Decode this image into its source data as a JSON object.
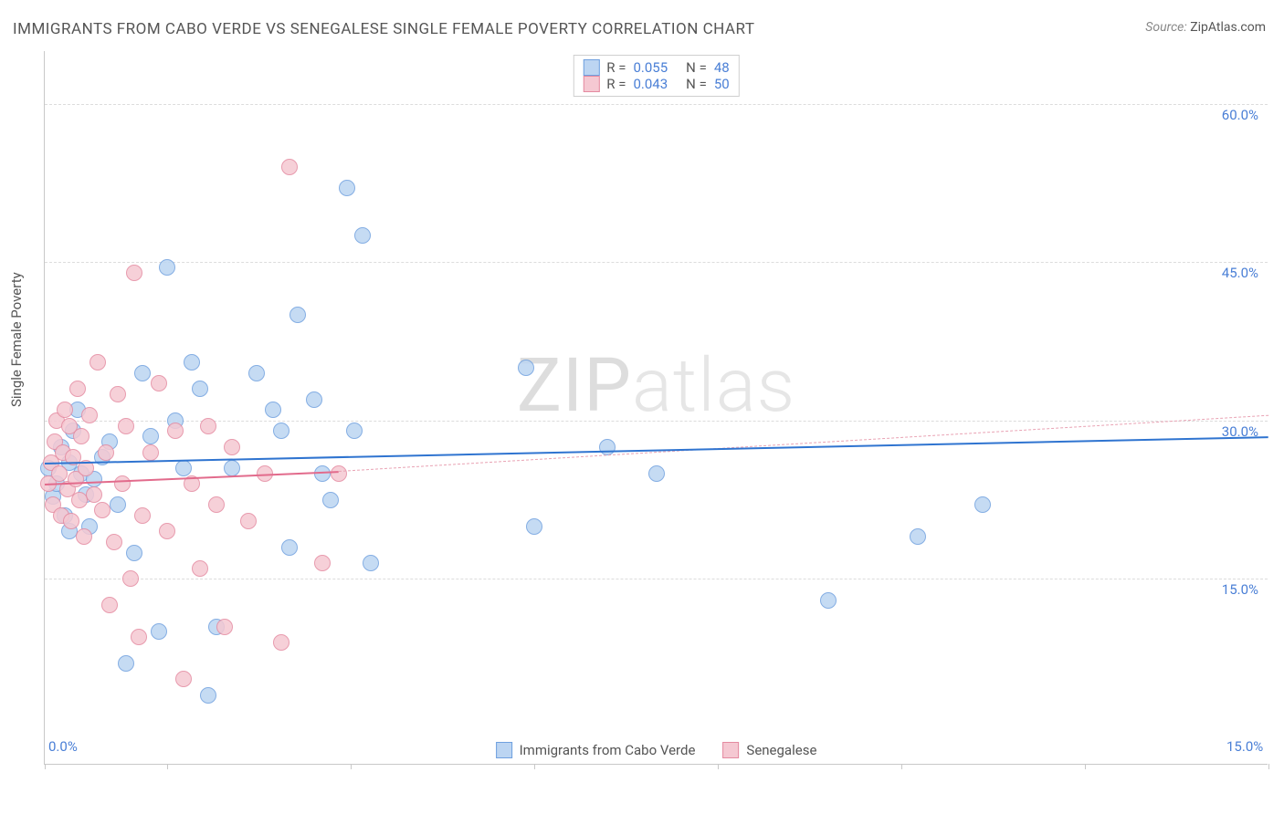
{
  "title": "IMMIGRANTS FROM CABO VERDE VS SENEGALESE SINGLE FEMALE POVERTY CORRELATION CHART",
  "source_label": "Source:",
  "source_value": "ZipAtlas.com",
  "y_axis_label": "Single Female Poverty",
  "watermark": "ZIPatlas",
  "chart": {
    "type": "scatter",
    "background_color": "#ffffff",
    "grid_color": "#dcdcdc",
    "axis_color": "#c8c8c8",
    "tick_label_color": "#4a7fd6",
    "label_fontsize": 15,
    "xlim": [
      0,
      15
    ],
    "ylim": [
      0,
      65
    ],
    "x_ticks": [
      0,
      1.5,
      3.75,
      6.0,
      8.25,
      10.5,
      12.75,
      15
    ],
    "x_tick_labels": {
      "0": "0.0%",
      "15": "15.0%"
    },
    "y_gridlines": [
      15,
      30,
      45,
      60
    ],
    "y_tick_labels": {
      "15": "15.0%",
      "30": "30.0%",
      "45": "45.0%",
      "60": "60.0%"
    },
    "marker_radius": 9,
    "marker_stroke_width": 1.5,
    "series": [
      {
        "name": "Immigrants from Cabo Verde",
        "fill": "#bcd5f2",
        "stroke": "#6fa0df",
        "r_value": "0.055",
        "n_value": "48",
        "trend": {
          "x1": 0,
          "y1": 26.0,
          "x2": 15,
          "y2": 28.5,
          "color": "#2f74d0",
          "width": 2.5,
          "dash": false
        },
        "points": [
          [
            0.05,
            25.5
          ],
          [
            0.1,
            22.8
          ],
          [
            0.15,
            24.0
          ],
          [
            0.2,
            27.5
          ],
          [
            0.25,
            21.0
          ],
          [
            0.3,
            26.0
          ],
          [
            0.3,
            19.5
          ],
          [
            0.35,
            29.0
          ],
          [
            0.4,
            31.0
          ],
          [
            0.45,
            25.0
          ],
          [
            0.5,
            23.0
          ],
          [
            0.55,
            20.0
          ],
          [
            0.6,
            24.5
          ],
          [
            0.7,
            26.5
          ],
          [
            0.8,
            28.0
          ],
          [
            0.9,
            22.0
          ],
          [
            1.0,
            7.0
          ],
          [
            1.1,
            17.5
          ],
          [
            1.2,
            34.5
          ],
          [
            1.3,
            28.5
          ],
          [
            1.4,
            10.0
          ],
          [
            1.5,
            44.5
          ],
          [
            1.6,
            30.0
          ],
          [
            1.7,
            25.5
          ],
          [
            1.8,
            35.5
          ],
          [
            1.9,
            33.0
          ],
          [
            2.0,
            4.0
          ],
          [
            2.1,
            10.5
          ],
          [
            2.3,
            25.5
          ],
          [
            2.6,
            34.5
          ],
          [
            2.8,
            31.0
          ],
          [
            2.9,
            29.0
          ],
          [
            3.0,
            18.0
          ],
          [
            3.1,
            40.0
          ],
          [
            3.3,
            32.0
          ],
          [
            3.4,
            25.0
          ],
          [
            3.5,
            22.5
          ],
          [
            3.7,
            52.0
          ],
          [
            3.8,
            29.0
          ],
          [
            3.9,
            47.5
          ],
          [
            4.0,
            16.5
          ],
          [
            5.9,
            35.0
          ],
          [
            6.0,
            20.0
          ],
          [
            6.9,
            27.5
          ],
          [
            7.5,
            25.0
          ],
          [
            9.6,
            13.0
          ],
          [
            10.7,
            19.0
          ],
          [
            11.5,
            22.0
          ]
        ]
      },
      {
        "name": "Senegalese",
        "fill": "#f5c8d2",
        "stroke": "#e48aa0",
        "r_value": "0.043",
        "n_value": "50",
        "trend_solid": {
          "x1": 0,
          "y1": 24.0,
          "x2": 3.6,
          "y2": 25.2,
          "color": "#e26b8c",
          "width": 2.5
        },
        "trend_dash": {
          "x1": 3.6,
          "y1": 25.2,
          "x2": 15,
          "y2": 30.5,
          "color": "#e9a3b4",
          "width": 1.2
        },
        "points": [
          [
            0.05,
            24.0
          ],
          [
            0.08,
            26.0
          ],
          [
            0.1,
            22.0
          ],
          [
            0.12,
            28.0
          ],
          [
            0.15,
            30.0
          ],
          [
            0.18,
            25.0
          ],
          [
            0.2,
            21.0
          ],
          [
            0.22,
            27.0
          ],
          [
            0.25,
            31.0
          ],
          [
            0.28,
            23.5
          ],
          [
            0.3,
            29.5
          ],
          [
            0.32,
            20.5
          ],
          [
            0.35,
            26.5
          ],
          [
            0.38,
            24.5
          ],
          [
            0.4,
            33.0
          ],
          [
            0.42,
            22.5
          ],
          [
            0.45,
            28.5
          ],
          [
            0.48,
            19.0
          ],
          [
            0.5,
            25.5
          ],
          [
            0.55,
            30.5
          ],
          [
            0.6,
            23.0
          ],
          [
            0.65,
            35.5
          ],
          [
            0.7,
            21.5
          ],
          [
            0.75,
            27.0
          ],
          [
            0.8,
            12.5
          ],
          [
            0.85,
            18.5
          ],
          [
            0.9,
            32.5
          ],
          [
            0.95,
            24.0
          ],
          [
            1.0,
            29.5
          ],
          [
            1.05,
            15.0
          ],
          [
            1.1,
            44.0
          ],
          [
            1.15,
            9.5
          ],
          [
            1.2,
            21.0
          ],
          [
            1.3,
            27.0
          ],
          [
            1.4,
            33.5
          ],
          [
            1.5,
            19.5
          ],
          [
            1.6,
            29.0
          ],
          [
            1.7,
            5.5
          ],
          [
            1.8,
            24.0
          ],
          [
            1.9,
            16.0
          ],
          [
            2.0,
            29.5
          ],
          [
            2.1,
            22.0
          ],
          [
            2.2,
            10.5
          ],
          [
            2.3,
            27.5
          ],
          [
            2.5,
            20.5
          ],
          [
            2.7,
            25.0
          ],
          [
            2.9,
            9.0
          ],
          [
            3.0,
            54.0
          ],
          [
            3.4,
            16.5
          ],
          [
            3.6,
            25.0
          ]
        ]
      }
    ],
    "legend_top": [
      {
        "swatch_fill": "#bcd5f2",
        "swatch_stroke": "#6fa0df",
        "r": "0.055",
        "n": "48"
      },
      {
        "swatch_fill": "#f5c8d2",
        "swatch_stroke": "#e48aa0",
        "r": "0.043",
        "n": "50"
      }
    ],
    "legend_bottom": [
      {
        "swatch_fill": "#bcd5f2",
        "swatch_stroke": "#6fa0df",
        "label": "Immigrants from Cabo Verde"
      },
      {
        "swatch_fill": "#f5c8d2",
        "swatch_stroke": "#e48aa0",
        "label": "Senegalese"
      }
    ]
  }
}
